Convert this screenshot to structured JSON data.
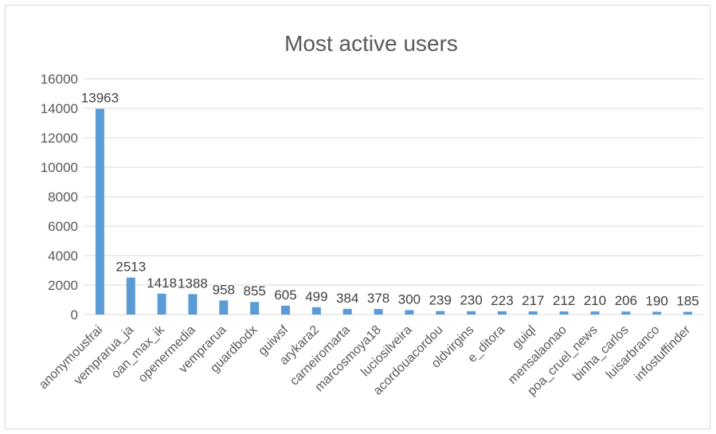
{
  "chart_data": {
    "type": "bar",
    "title": "Most active users",
    "xlabel": "",
    "ylabel": "",
    "ylim": [
      0,
      16000
    ],
    "yticks": [
      0,
      2000,
      4000,
      6000,
      8000,
      10000,
      12000,
      14000,
      16000
    ],
    "grid": true,
    "legend": "none",
    "bar_color": "#5b9bd5",
    "categories": [
      "anonymousfrai",
      "vemprarua_ja",
      "oan_max_ik",
      "openermedia",
      "vemprarua",
      "guardbodx",
      "guiwsf",
      "arykara2",
      "carneiromarta",
      "marcosmoya18",
      "luciosilveira",
      "acordouacordou",
      "oldvirgins",
      "e_ditora",
      "guiql",
      "mensalaonao",
      "poa_cruel_news",
      "binha_carlos",
      "luisarbranco",
      "infostuffinder"
    ],
    "values": [
      13963,
      2513,
      1418,
      1388,
      958,
      855,
      605,
      499,
      384,
      378,
      300,
      239,
      230,
      223,
      217,
      212,
      210,
      206,
      190,
      185
    ]
  }
}
